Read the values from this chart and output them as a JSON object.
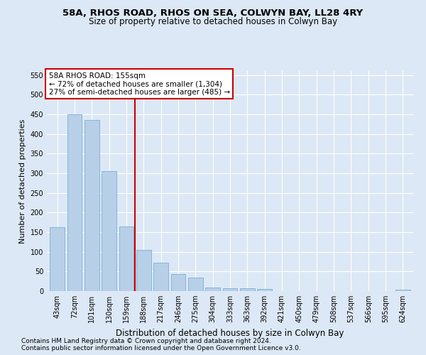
{
  "title": "58A, RHOS ROAD, RHOS ON SEA, COLWYN BAY, LL28 4RY",
  "subtitle": "Size of property relative to detached houses in Colwyn Bay",
  "xlabel": "Distribution of detached houses by size in Colwyn Bay",
  "ylabel": "Number of detached properties",
  "categories": [
    "43sqm",
    "72sqm",
    "101sqm",
    "130sqm",
    "159sqm",
    "188sqm",
    "217sqm",
    "246sqm",
    "275sqm",
    "304sqm",
    "333sqm",
    "363sqm",
    "392sqm",
    "421sqm",
    "450sqm",
    "479sqm",
    "508sqm",
    "537sqm",
    "566sqm",
    "595sqm",
    "624sqm"
  ],
  "values": [
    163,
    450,
    435,
    305,
    165,
    105,
    72,
    44,
    35,
    9,
    7,
    7,
    6,
    0,
    0,
    0,
    0,
    0,
    0,
    0,
    3
  ],
  "bar_color": "#b8cfe8",
  "bar_edgecolor": "#7aafd4",
  "property_line_x": 4.5,
  "annotation_line1": "58A RHOS ROAD: 155sqm",
  "annotation_line2": "← 72% of detached houses are smaller (1,304)",
  "annotation_line3": "27% of semi-detached houses are larger (485) →",
  "annotation_box_color": "#ffffff",
  "annotation_box_edgecolor": "#cc0000",
  "vline_color": "#cc0000",
  "ylim": [
    0,
    560
  ],
  "yticks": [
    0,
    50,
    100,
    150,
    200,
    250,
    300,
    350,
    400,
    450,
    500,
    550
  ],
  "footer_line1": "Contains HM Land Registry data © Crown copyright and database right 2024.",
  "footer_line2": "Contains public sector information licensed under the Open Government Licence v3.0.",
  "bg_color": "#dce8f5",
  "plot_bg_color": "#dce8f5",
  "title_fontsize": 9.5,
  "subtitle_fontsize": 8.5,
  "ylabel_fontsize": 8,
  "xlabel_fontsize": 8.5,
  "tick_fontsize": 7,
  "footer_fontsize": 6.5,
  "annotation_fontsize": 7.5
}
